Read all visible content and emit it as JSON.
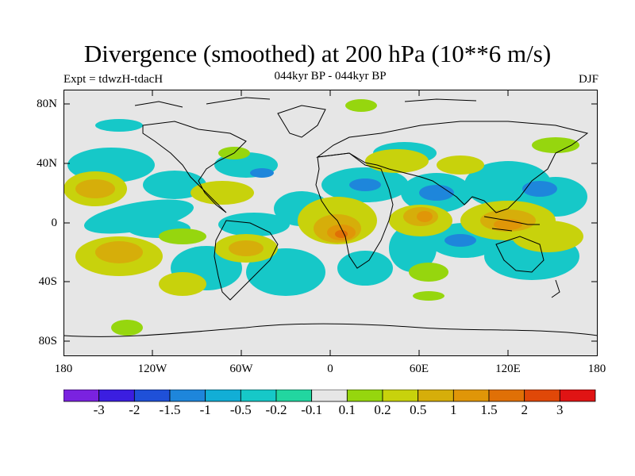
{
  "title": "Divergence (smoothed) at 200 hPa (10**6 m/s)",
  "subtitle_left": "Expt = tdwzH-tdacH",
  "subtitle_center": "044kyr BP - 044kyr BP",
  "subtitle_right": "DJF",
  "y_ticks": [
    "80N",
    "40N",
    "0",
    "40S",
    "80S"
  ],
  "x_ticks": [
    "180",
    "120W",
    "60W",
    "0",
    "60E",
    "120E",
    "180"
  ],
  "colorbar": {
    "colors": [
      "#7a22e0",
      "#3b1ee0",
      "#1f50d8",
      "#1e86db",
      "#12aed6",
      "#16c8c8",
      "#22d6a0",
      "#e6e6e6",
      "#96d60e",
      "#c8d20c",
      "#d6ae0a",
      "#e09608",
      "#e07006",
      "#e04808",
      "#e01414"
    ],
    "labels": [
      "-3",
      "-2",
      "-1.5",
      "-1",
      "-0.5",
      "-0.2",
      "-0.1",
      "0.1",
      "0.2",
      "0.5",
      "1",
      "1.5",
      "2",
      "3"
    ]
  },
  "map_colors": {
    "background": "#e6e6e6",
    "coast": "#000000"
  }
}
